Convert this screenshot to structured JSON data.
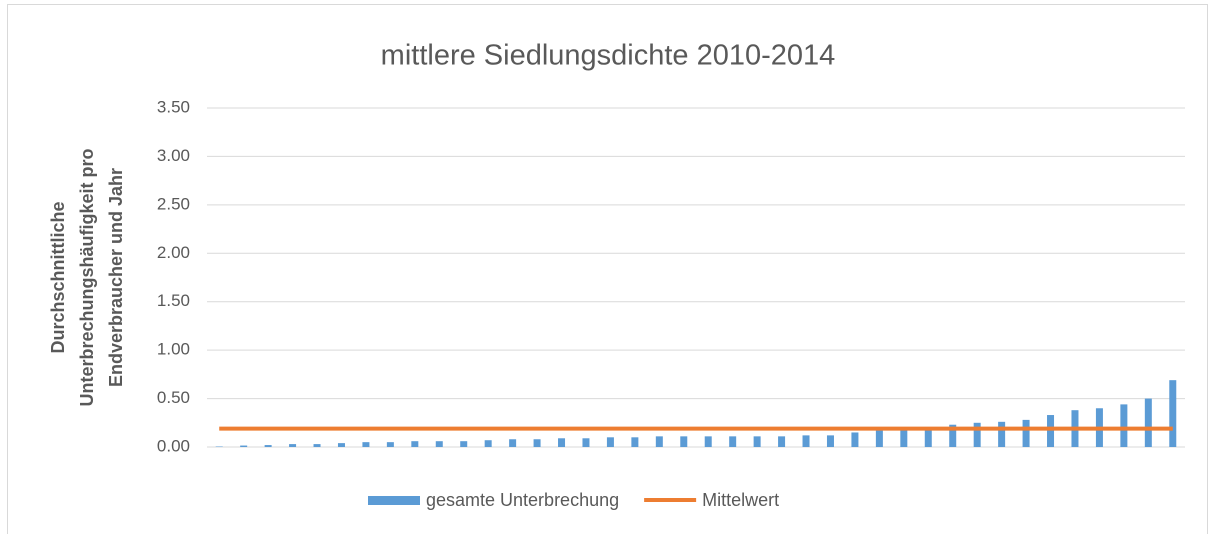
{
  "chart_data": {
    "type": "bar",
    "title": "mittlere Siedlungsdichte 2010-2014",
    "y_label": [
      "Durchschnittliche",
      "Unterbrechungshäufigkeit pro",
      "Endverbraucher und Jahr"
    ],
    "categories": [
      null,
      null,
      null,
      null,
      null,
      null,
      null,
      null,
      null,
      null,
      null,
      null,
      null,
      null,
      null,
      null,
      null,
      null,
      null,
      null,
      null,
      null,
      null,
      null,
      null,
      null,
      null,
      null,
      null,
      null,
      null,
      null,
      null,
      null,
      null,
      null,
      null,
      null,
      null,
      null
    ],
    "series": [
      {
        "name": "gesamte Unterbrechung",
        "type": "bar",
        "color": "#5b9bd5",
        "values": [
          0.005,
          0.015,
          0.02,
          0.03,
          0.03,
          0.04,
          0.05,
          0.05,
          0.06,
          0.06,
          0.06,
          0.07,
          0.08,
          0.08,
          0.09,
          0.09,
          0.1,
          0.1,
          0.11,
          0.11,
          0.11,
          0.11,
          0.11,
          0.11,
          0.12,
          0.12,
          0.15,
          0.17,
          0.18,
          0.18,
          0.23,
          0.25,
          0.26,
          0.28,
          0.33,
          0.38,
          0.4,
          0.44,
          0.5,
          0.69
        ]
      },
      {
        "name": "Mittelwert",
        "type": "line",
        "color": "#ed7d31",
        "values": [
          0.19,
          0.19,
          0.19,
          0.19,
          0.19,
          0.19,
          0.19,
          0.19,
          0.19,
          0.19,
          0.19,
          0.19,
          0.19,
          0.19,
          0.19,
          0.19,
          0.19,
          0.19,
          0.19,
          0.19,
          0.19,
          0.19,
          0.19,
          0.19,
          0.19,
          0.19,
          0.19,
          0.19,
          0.19,
          0.19,
          0.19,
          0.19,
          0.19,
          0.19,
          0.19,
          0.19,
          0.19,
          0.19,
          0.19,
          0.19
        ]
      }
    ],
    "ylim": [
      0,
      3.5
    ],
    "yticks": [
      {
        "value": 0,
        "label": "0.00"
      },
      {
        "value": 0.5,
        "label": "0.50"
      },
      {
        "value": 1,
        "label": "1.00"
      },
      {
        "value": 1.5,
        "label": "1.50"
      },
      {
        "value": 2,
        "label": "2.00"
      },
      {
        "value": 2.5,
        "label": "2.50"
      },
      {
        "value": 3,
        "label": "3.00"
      },
      {
        "value": 3.5,
        "label": "3.50"
      }
    ],
    "grid": true,
    "legend": "bottom"
  }
}
